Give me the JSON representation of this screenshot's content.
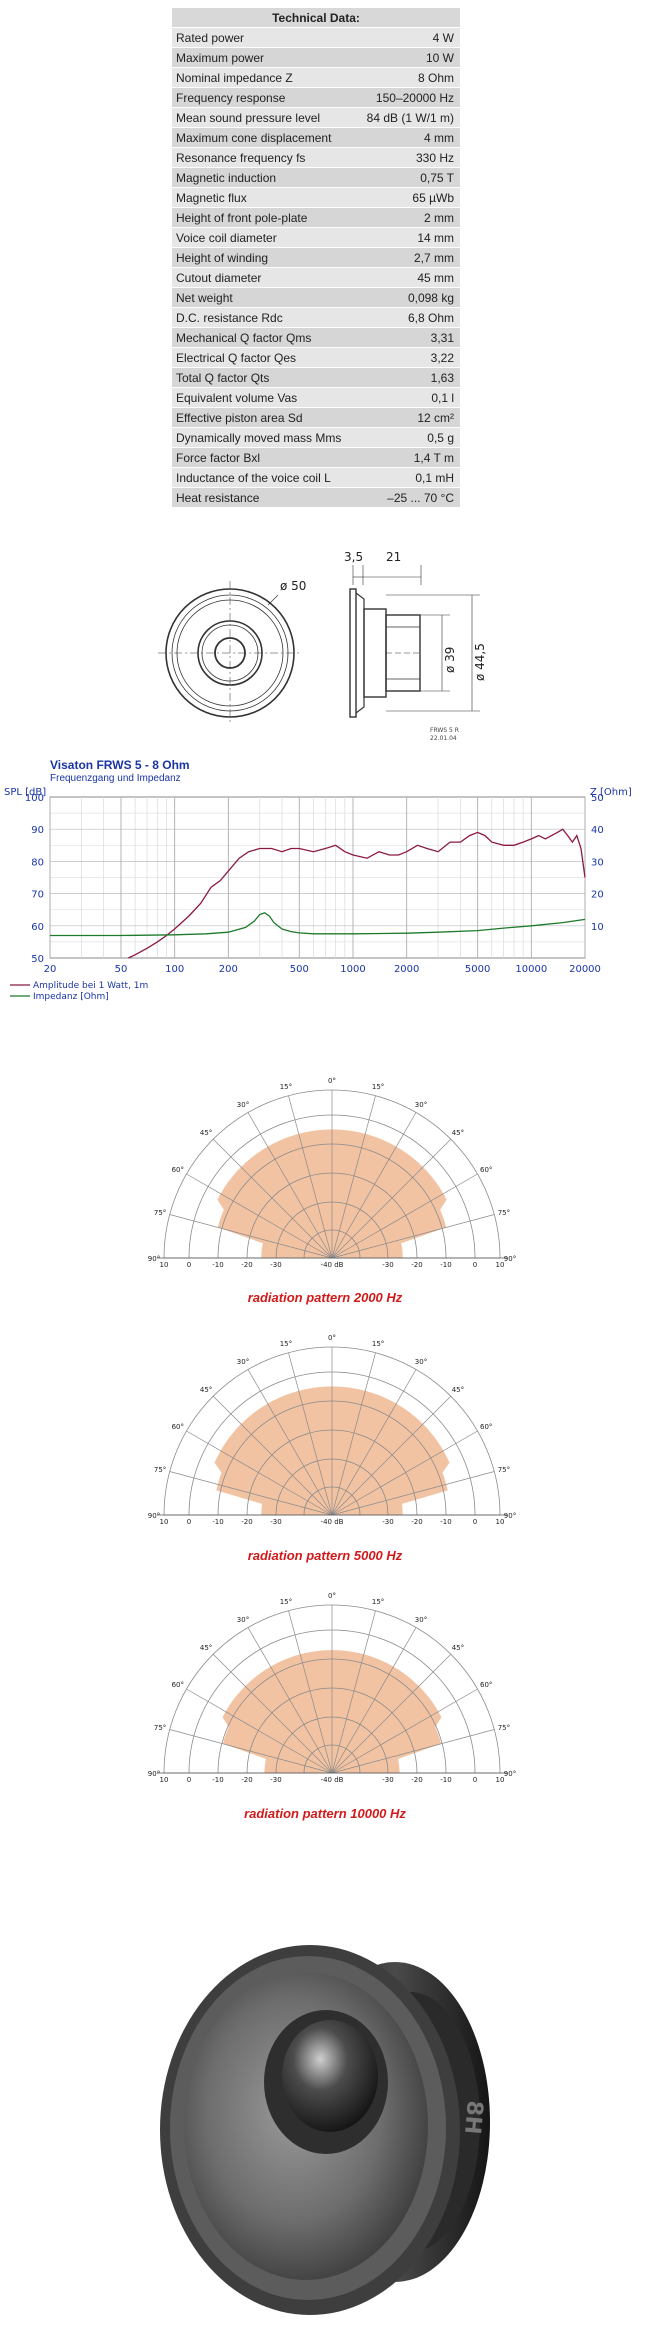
{
  "tech": {
    "title": "Technical Data:",
    "rows": [
      {
        "label": "Rated power",
        "value": "4 W"
      },
      {
        "label": "Maximum power",
        "value": "10 W"
      },
      {
        "label": "Nominal impedance Z",
        "value": "8 Ohm"
      },
      {
        "label": "Frequency response",
        "value": "150–20000 Hz"
      },
      {
        "label": "Mean sound pressure level",
        "value": "84 dB (1 W/1 m)"
      },
      {
        "label": "Maximum cone displacement",
        "value": "4 mm"
      },
      {
        "label": "Resonance frequency fs",
        "value": "330 Hz"
      },
      {
        "label": "Magnetic induction",
        "value": "0,75 T"
      },
      {
        "label": "Magnetic flux",
        "value": "65 µWb"
      },
      {
        "label": "Height of front pole-plate",
        "value": "2 mm"
      },
      {
        "label": "Voice coil diameter",
        "value": "14 mm"
      },
      {
        "label": "Height of winding",
        "value": "2,7 mm"
      },
      {
        "label": "Cutout diameter",
        "value": "45 mm"
      },
      {
        "label": "Net weight",
        "value": "0,098 kg"
      },
      {
        "label": "D.C. resistance Rdc",
        "value": "6,8 Ohm"
      },
      {
        "label": "Mechanical Q factor Qms",
        "value": "3,31"
      },
      {
        "label": "Electrical Q factor Qes",
        "value": "3,22"
      },
      {
        "label": "Total Q factor Qts",
        "value": "1,63"
      },
      {
        "label": "Equivalent volume Vas",
        "value": "0,1 l"
      },
      {
        "label": "Effective piston area Sd",
        "value": "12 cm²"
      },
      {
        "label": "Dynamically moved mass Mms",
        "value": "0,5 g"
      },
      {
        "label": "Force factor Bxl",
        "value": "1,4 T m"
      },
      {
        "label": "Inductance of the voice coil L",
        "value": "0,1 mH"
      },
      {
        "label": "Heat resistance",
        "value": "–25 ... 70 °C"
      }
    ]
  },
  "drawing": {
    "dim_diameter": "ø 50",
    "dim_depth_a": "3,5",
    "dim_depth_b": "21",
    "dim_inner": "ø 39",
    "dim_outer": "ø 44,5",
    "stamp_name": "FRWS 5 R",
    "stamp_date": "22.01.04"
  },
  "chart_data": {
    "type": "line",
    "title": "Visaton FRWS 5 - 8 Ohm",
    "subtitle": "Frequenzgang und Impedanz",
    "ylabel": "SPL [dB]",
    "y2label": "Z [Ohm]",
    "xscale": "log",
    "xlim": [
      20,
      20000
    ],
    "ylim": [
      50,
      100
    ],
    "y2lim": [
      0,
      50
    ],
    "x_ticks": [
      20,
      50,
      100,
      200,
      500,
      1000,
      2000,
      5000,
      10000,
      20000
    ],
    "x_tick_labels": [
      "20",
      "50",
      "100",
      "200",
      "500",
      "1000",
      "2000",
      "5000",
      "10000",
      "20000"
    ],
    "y_ticks": [
      50,
      60,
      70,
      80,
      90,
      100
    ],
    "y2_ticks": [
      10,
      20,
      30,
      40,
      50
    ],
    "grid": true,
    "series": [
      {
        "name": "Amplitude bei 1 Watt, 1m",
        "color": "#8b1a3c",
        "axis": "left",
        "x": [
          55,
          60,
          70,
          80,
          90,
          100,
          120,
          140,
          160,
          180,
          200,
          230,
          260,
          300,
          350,
          400,
          450,
          500,
          600,
          700,
          800,
          900,
          1000,
          1200,
          1400,
          1600,
          1800,
          2000,
          2300,
          2600,
          3000,
          3500,
          4000,
          4500,
          5000,
          5500,
          6000,
          7000,
          8000,
          9000,
          10000,
          11000,
          12000,
          13000,
          14000,
          15000,
          16000,
          17000,
          18000,
          19000,
          20000
        ],
        "y": [
          50,
          51,
          53,
          55,
          57,
          59,
          63,
          67,
          72,
          74,
          77,
          81,
          83,
          84,
          84,
          83,
          84,
          84,
          83,
          84,
          85,
          83,
          82,
          81,
          83,
          82,
          82,
          83,
          85,
          84,
          83,
          86,
          86,
          88,
          89,
          88,
          86,
          85,
          85,
          86,
          87,
          88,
          87,
          88,
          89,
          90,
          88,
          86,
          88,
          84,
          75
        ]
      },
      {
        "name": "Impedanz [Ohm]",
        "color": "#1e7a2a",
        "axis": "right",
        "x": [
          20,
          50,
          100,
          150,
          200,
          250,
          280,
          300,
          320,
          340,
          360,
          400,
          450,
          500,
          600,
          800,
          1000,
          2000,
          3000,
          5000,
          7000,
          10000,
          15000,
          20000
        ],
        "y": [
          7.0,
          7.0,
          7.2,
          7.5,
          8.0,
          9.5,
          11.5,
          13.5,
          14.0,
          13.0,
          11.0,
          9.0,
          8.2,
          7.8,
          7.5,
          7.5,
          7.5,
          7.7,
          8.0,
          8.5,
          9.3,
          10.0,
          11.0,
          12.0
        ]
      }
    ]
  },
  "polars": [
    {
      "caption": "radiation pattern 2000 Hz",
      "fill_level_db": -5,
      "max_fill_angle_deg": 75
    },
    {
      "caption": "radiation pattern 5000 Hz",
      "fill_level_db": -5,
      "max_fill_angle_deg": 80
    },
    {
      "caption": "radiation pattern 10000 Hz",
      "fill_level_db": -7,
      "max_fill_angle_deg": 75
    }
  ],
  "polar_labels": {
    "angles": [
      "0°",
      "15°",
      "15°",
      "30°",
      "30°",
      "45°",
      "45°",
      "60°",
      "60°",
      "75°",
      "75°",
      "90°",
      "90°"
    ],
    "radial": [
      "10",
      "0",
      "-10",
      "-20",
      "-30",
      "-40 dB",
      "-30",
      "-20",
      "-10",
      "0",
      "10"
    ]
  },
  "colors": {
    "polar_fill": "#f2c3a3",
    "chart_blue": "#1a35a6",
    "caption_red": "#d21a1a"
  }
}
